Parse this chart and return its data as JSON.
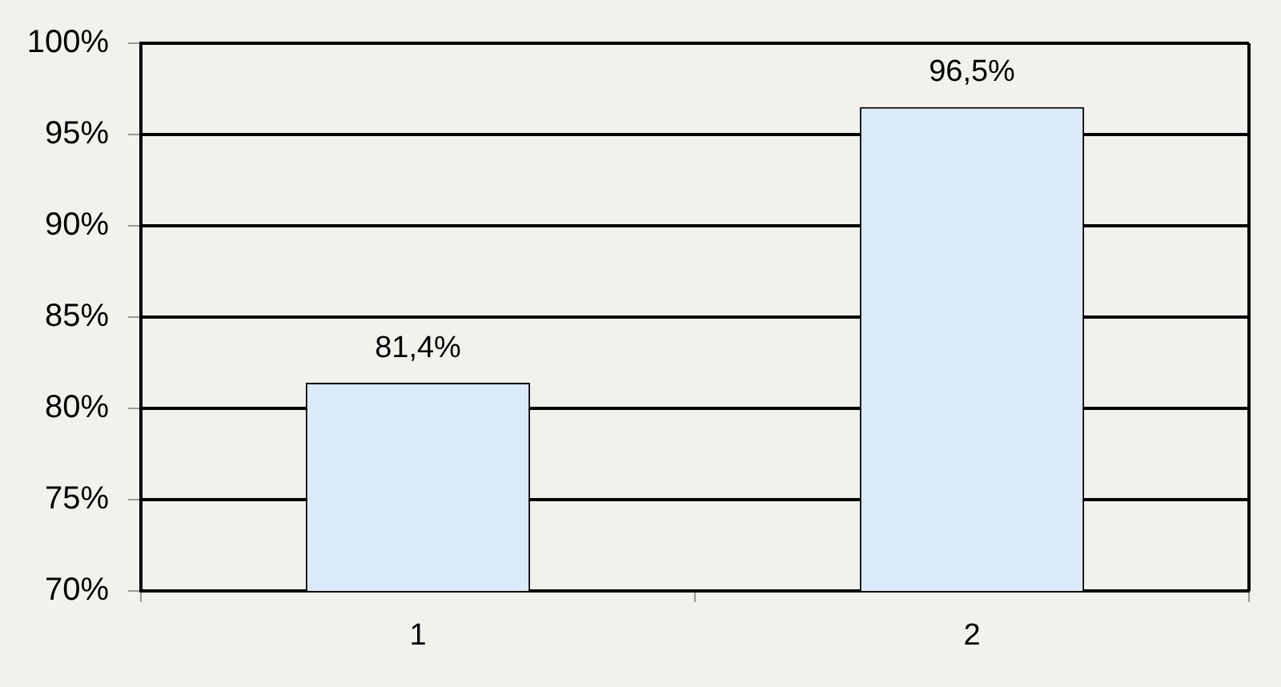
{
  "chart_data": {
    "type": "bar",
    "categories": [
      "1",
      "2"
    ],
    "values": [
      81.4,
      96.5
    ],
    "color": "#dbeaf9",
    "value_labels": [
      "81,4%",
      "96,5%"
    ],
    "ylim": [
      70,
      100
    ],
    "yticks": [
      {
        "value": 70,
        "label": "70%"
      },
      {
        "value": 75,
        "label": "75%"
      },
      {
        "value": 80,
        "label": "80%"
      },
      {
        "value": 85,
        "label": "85%"
      },
      {
        "value": 90,
        "label": "90%"
      },
      {
        "value": 95,
        "label": "95%"
      },
      {
        "value": 100,
        "label": "100%"
      }
    ],
    "grid": "y"
  }
}
